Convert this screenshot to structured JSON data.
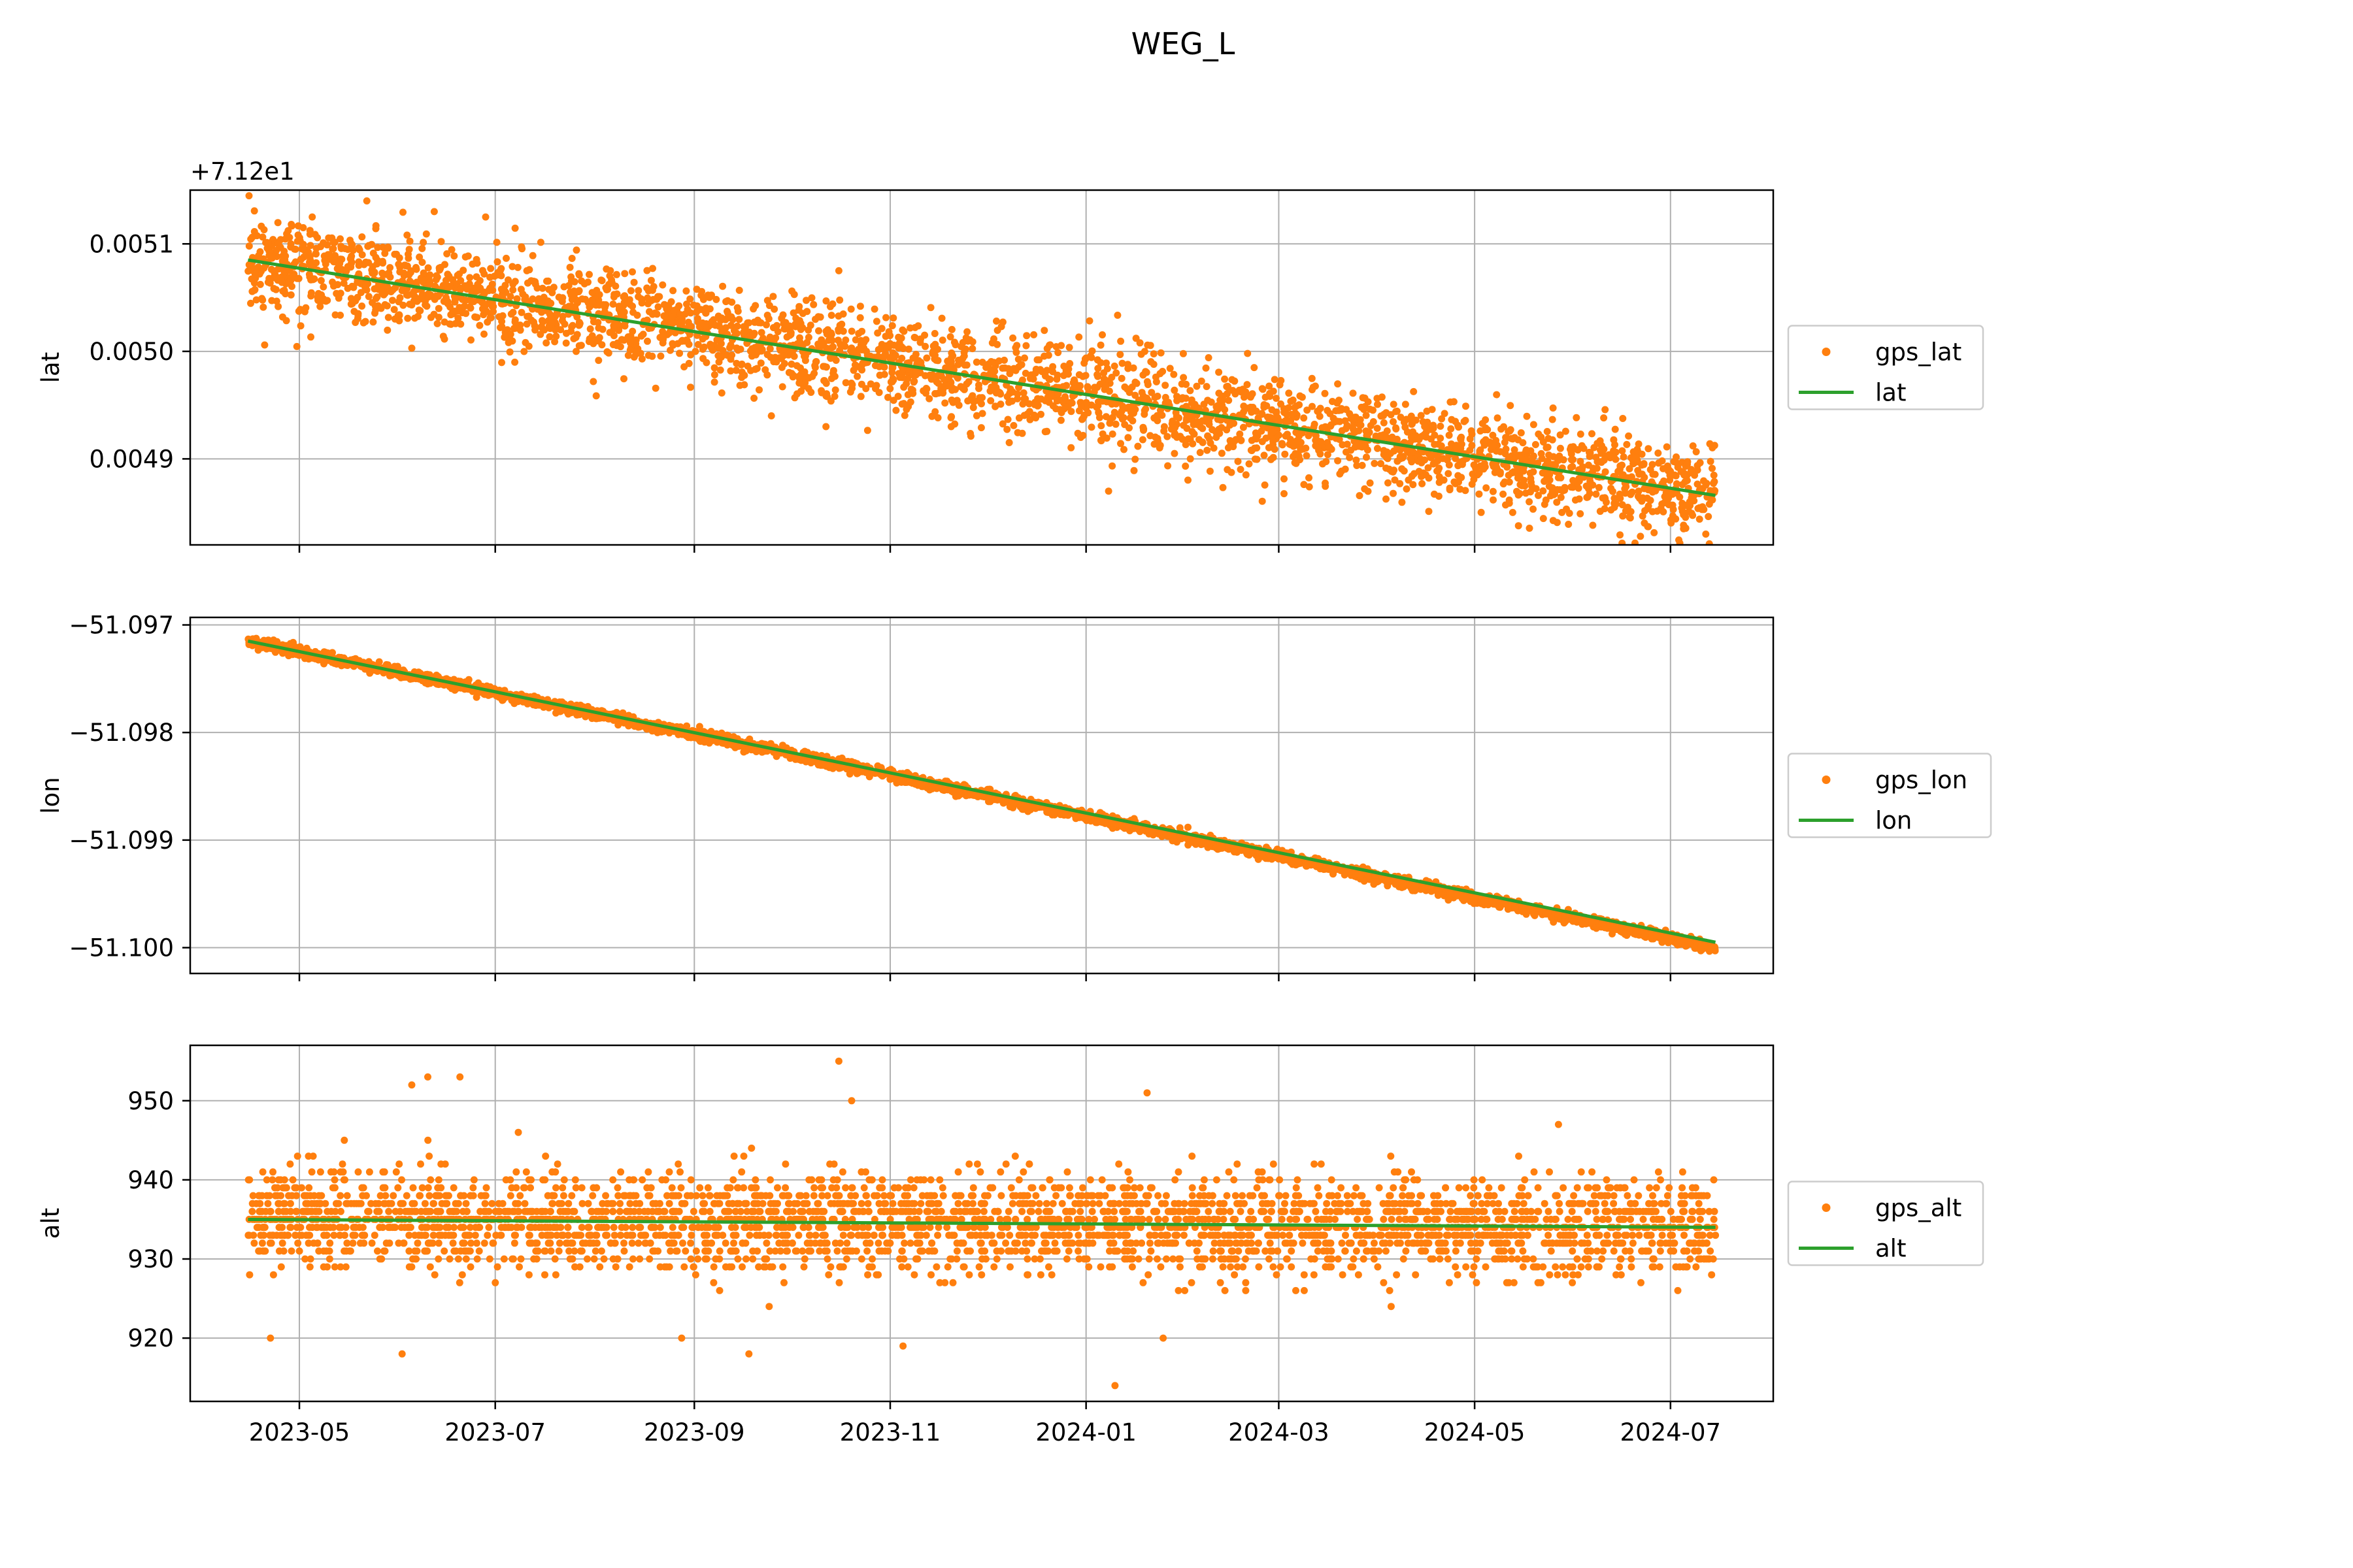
{
  "figure": {
    "title": "WEG_L"
  },
  "chart_data": [
    {
      "type": "scatter",
      "title": "",
      "xlabel": "",
      "ylabel": "lat",
      "xlim": [
        "2023-03-28",
        "2024-08-02"
      ],
      "ylim": [
        0.00482,
        0.00515
      ],
      "y_offset_label": "+7.12e1",
      "x_ticks": [
        "2023-05",
        "2023-07",
        "2023-09",
        "2023-11",
        "2024-01",
        "2024-03",
        "2024-05",
        "2024-07"
      ],
      "x_tick_labels_visible": false,
      "y_ticks": [
        0.0049,
        0.005,
        0.0051
      ],
      "y_tick_labels": [
        "0.0049",
        "0.0050",
        "0.0051"
      ],
      "grid": true,
      "legend_placement": "outside-right",
      "series": [
        {
          "name": "gps_lat",
          "kind": "scatter",
          "color": "#ff7f0e",
          "x_range": [
            "2023-04-15",
            "2024-07-15"
          ],
          "trend_start": 0.005085,
          "trend_end": 0.004866,
          "spread": 2.2e-05,
          "outliers": [
            {
              "x": "2023-05-22",
              "y": 0.00514
            },
            {
              "x": "2023-06-12",
              "y": 0.00513
            },
            {
              "x": "2023-10-16",
              "y": 0.005075
            },
            {
              "x": "2023-06-28",
              "y": 0.005125
            },
            {
              "x": "2023-05-05",
              "y": 0.005125
            },
            {
              "x": "2023-06-05",
              "y": 0.005003
            },
            {
              "x": "2023-09-25",
              "y": 0.00494
            },
            {
              "x": "2023-10-12",
              "y": 0.00493
            },
            {
              "x": "2023-11-20",
              "y": 0.00493
            },
            {
              "x": "2024-01-08",
              "y": 0.00487
            },
            {
              "x": "2024-02-14",
              "y": 0.00489
            },
            {
              "x": "2024-07-12",
              "y": 0.00483
            }
          ]
        },
        {
          "name": "lat",
          "kind": "line",
          "color": "#2ca02c",
          "x": [
            "2023-04-15",
            "2024-07-15"
          ],
          "y": [
            0.005085,
            0.004866
          ]
        }
      ]
    },
    {
      "type": "scatter",
      "title": "",
      "xlabel": "",
      "ylabel": "lon",
      "xlim": [
        "2023-03-28",
        "2024-08-02"
      ],
      "ylim": [
        -51.10024,
        -51.09693
      ],
      "x_ticks": [
        "2023-05",
        "2023-07",
        "2023-09",
        "2023-11",
        "2024-01",
        "2024-03",
        "2024-05",
        "2024-07"
      ],
      "x_tick_labels_visible": false,
      "y_ticks": [
        -51.1,
        -51.099,
        -51.098,
        -51.097
      ],
      "y_tick_labels": [
        "−51.100",
        "−51.099",
        "−51.098",
        "−51.097"
      ],
      "grid": true,
      "legend_placement": "outside-right",
      "series": [
        {
          "name": "gps_lon",
          "kind": "scatter",
          "color": "#ff7f0e",
          "x_range": [
            "2023-04-15",
            "2024-07-15"
          ],
          "trend_start": -51.09715,
          "trend_end": -51.1,
          "spread": 2.5e-05,
          "outliers": []
        },
        {
          "name": "lon",
          "kind": "line",
          "color": "#2ca02c",
          "x": [
            "2023-04-15",
            "2024-07-15"
          ],
          "y": [
            -51.09715,
            -51.09995
          ]
        }
      ]
    },
    {
      "type": "scatter",
      "title": "",
      "xlabel": "",
      "ylabel": "alt",
      "xlim": [
        "2023-03-28",
        "2024-08-02"
      ],
      "ylim": [
        912,
        957
      ],
      "x_ticks": [
        "2023-05",
        "2023-07",
        "2023-09",
        "2023-11",
        "2024-01",
        "2024-03",
        "2024-05",
        "2024-07"
      ],
      "x_tick_labels_visible": true,
      "y_ticks": [
        920,
        930,
        940,
        950
      ],
      "y_tick_labels": [
        "920",
        "930",
        "940",
        "950"
      ],
      "grid": true,
      "legend_placement": "outside-right",
      "series": [
        {
          "name": "gps_alt",
          "kind": "scatter",
          "color": "#ff7f0e",
          "x_range": [
            "2023-04-15",
            "2024-07-15"
          ],
          "trend_start": 935,
          "trend_end": 934,
          "spread": 3,
          "outliers": [
            {
              "x": "2023-10-16",
              "y": 955
            },
            {
              "x": "2023-06-20",
              "y": 953
            },
            {
              "x": "2023-06-10",
              "y": 953
            },
            {
              "x": "2023-06-05",
              "y": 952
            },
            {
              "x": "2024-01-20",
              "y": 951
            },
            {
              "x": "2023-10-20",
              "y": 950
            },
            {
              "x": "2023-05-15",
              "y": 945
            },
            {
              "x": "2023-04-22",
              "y": 920
            },
            {
              "x": "2023-06-02",
              "y": 918
            },
            {
              "x": "2023-09-18",
              "y": 918
            },
            {
              "x": "2023-11-05",
              "y": 919
            },
            {
              "x": "2024-01-10",
              "y": 914
            },
            {
              "x": "2024-01-25",
              "y": 920
            },
            {
              "x": "2024-04-05",
              "y": 924
            }
          ]
        },
        {
          "name": "alt",
          "kind": "line",
          "color": "#2ca02c",
          "x": [
            "2023-04-15",
            "2024-07-15"
          ],
          "y": [
            935,
            934
          ]
        }
      ]
    }
  ]
}
